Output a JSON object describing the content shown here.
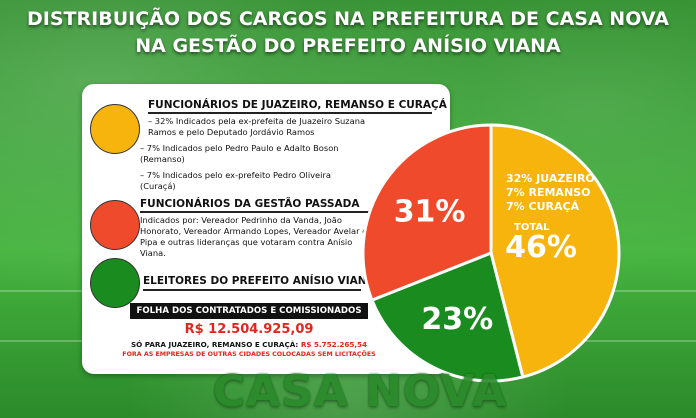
{
  "header": {
    "line1": "DISTRIBUIÇÃO DOS CARGOS NA PREFEITURA DE CASA NOVA",
    "line2": "NA GESTÃO DO PREFEITO ANÍSIO VIANA"
  },
  "legend": {
    "group1": {
      "title": "FUNCIONÁRIOS DE JUAZEIRO, REMANSO E CURAÇÁ",
      "notes": [
        "–   32% Indicados pela ex-prefeita de Juazeiro Suzana Ramos e pelo Deputado Jordávio Ramos",
        "–   7%  Indicados pelo Pedro Paulo e Adalto Boson (Remanso)",
        "–   7%  Indicados pelo ex-prefeito Pedro Oliveira (Curaçá)"
      ],
      "color": "#f6b40c"
    },
    "group2": {
      "title": "FUNCIONÁRIOS DA GESTÃO PASSADA",
      "note": "Indicados por: Vereador Pedrinho da Vanda, João Honorato, Vereador Armando Lopes, Vereador Avelar do Pipa e outras lideranças que votaram contra Anísio Viana.",
      "color": "#f04a2c"
    },
    "group3": {
      "title": "ELEITORES DO PREFEITO ANÍSIO VIANA",
      "color": "#1a8c1f"
    }
  },
  "payroll": {
    "label": "FOLHA DOS CONTRATADOS E COMISSIONADOS",
    "total": "R$ 12.504.925,09",
    "subtotal_label": "SÓ PARA JUAZEIRO, REMANSO E CURAÇÁ:",
    "subtotal_amount": "R$ 5.752.265,54",
    "disclaimer": "FORA AS EMPRESAS DE OUTRAS CIDADES COLOCADAS SEM LICITAÇÕES"
  },
  "brand": {
    "wordmark": "CASA NOVA"
  },
  "chart_data": {
    "type": "pie",
    "title": "",
    "slices": [
      {
        "label": "FUNCIONÁRIOS DE JUAZEIRO, REMANSO E CURAÇÁ",
        "value": 46,
        "color": "#f6b40c",
        "display": "46%",
        "detail_lines": [
          "32% JUAZEIRO",
          "7% REMANSO",
          "7% CURAÇÁ"
        ],
        "total_label": "TOTAL"
      },
      {
        "label": "ELEITORES DO PREFEITO ANÍSIO VIANA",
        "value": 23,
        "color": "#1a8c1f",
        "display": "23%"
      },
      {
        "label": "FUNCIONÁRIOS DA GESTÃO PASSADA",
        "value": 31,
        "color": "#f04a2c",
        "display": "31%"
      }
    ]
  }
}
